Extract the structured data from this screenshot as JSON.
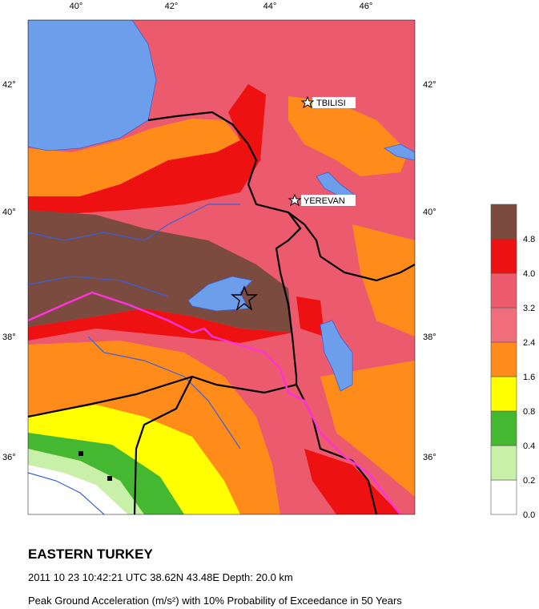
{
  "map": {
    "top_labels": [
      "40°",
      "42°",
      "44°",
      "46°"
    ],
    "left_labels": [
      "42°",
      "40°",
      "38°",
      "36°"
    ],
    "right_labels": [
      "42°",
      "40°",
      "38°",
      "36°"
    ],
    "cities": [
      "TBILISI",
      "YEREVAN"
    ],
    "legend": {
      "labels": [
        "0.0",
        "0.2",
        "0.4",
        "0.8",
        "1.6",
        "2.4",
        "3.2",
        "4.0",
        "4.8"
      ],
      "colors": [
        "#ffffff",
        "#c8f0a8",
        "#44b830",
        "#ffff00",
        "#ff8c1a",
        "#f06e7c",
        "#ec5a6e",
        "#ee1111",
        "#7b4b3f"
      ]
    },
    "caption": {
      "title": "EASTERN TURKEY",
      "event": "2011 10 23 10:42:21 UTC 38.62N 43.48E Depth: 20.0 km",
      "description": "Peak Ground Acceleration (m/s²) with 10% Probability of Exceedance in 50 Years"
    }
  }
}
